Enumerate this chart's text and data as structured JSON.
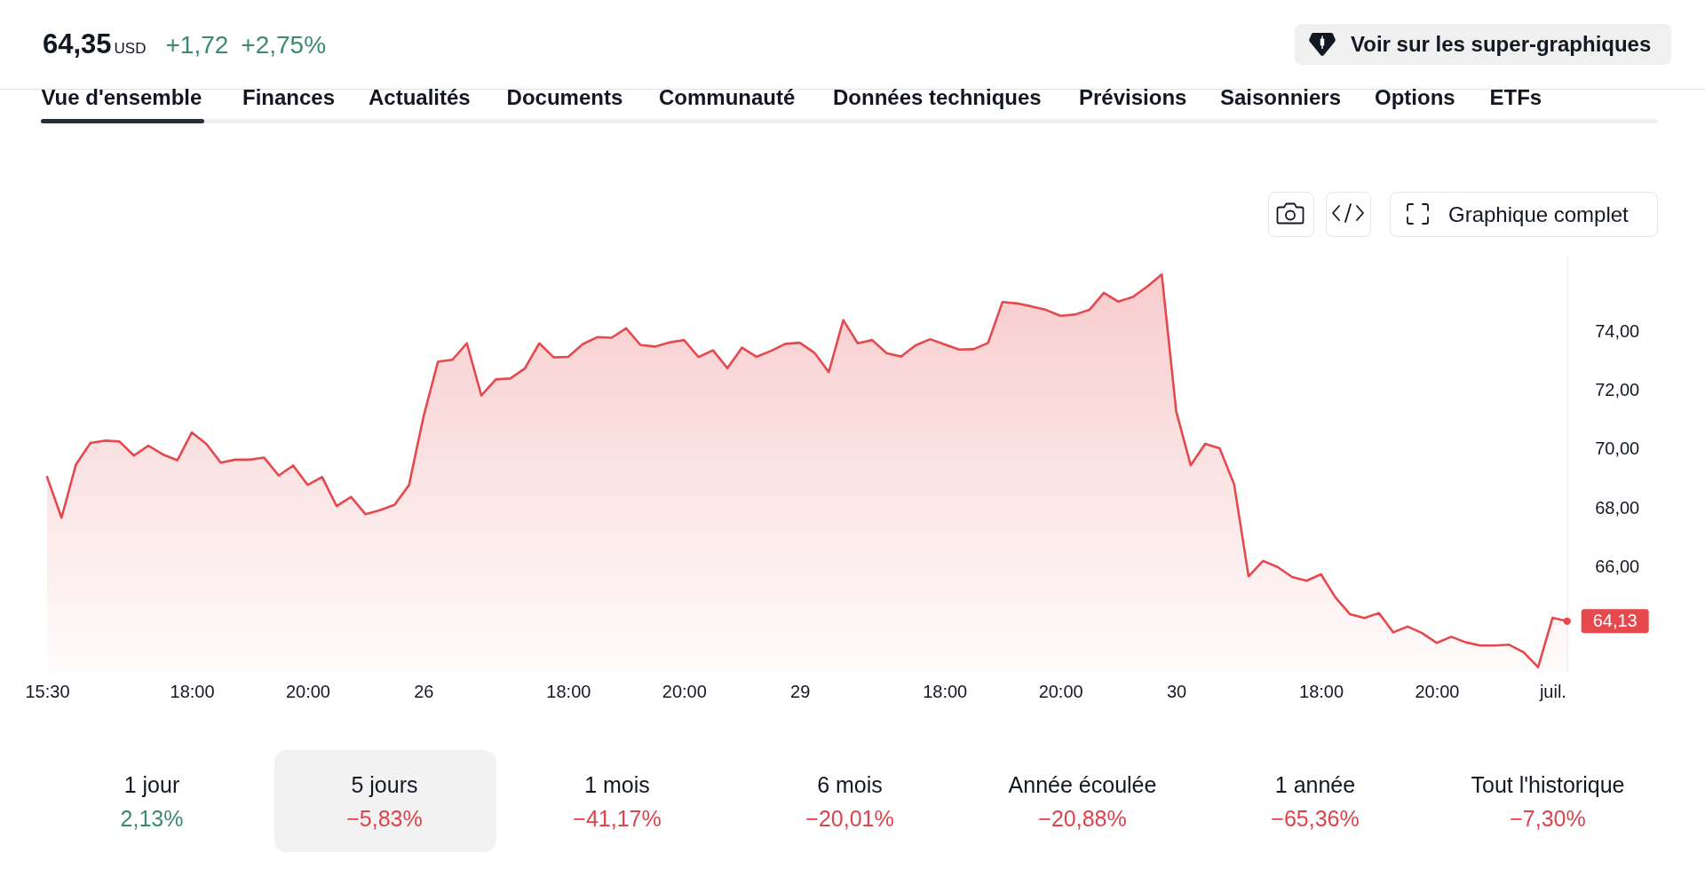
{
  "chart_data": [
    {
      "type": "other",
      "annotations": [
        "64,35",
        "USD",
        "+1,72",
        "+2,75%",
        "Voir sur les super-graphiques",
        "Vue d'ensemble",
        "Finances",
        "Actualités",
        "Documents",
        "Communauté",
        "Données techniques",
        "Prévisions",
        "Saisonniers",
        "Options",
        "ETFs"
      ]
    },
    {
      "type": "area",
      "annotations": [
        "Graphique complet"
      ],
      "color": "#e5484d",
      "ylim": [
        62.4,
        76.6
      ],
      "yticks": [
        {
          "value": 66,
          "label": "66,00"
        },
        {
          "value": 68,
          "label": "68,00"
        },
        {
          "value": 70,
          "label": "70,00"
        },
        {
          "value": 72,
          "label": "72,00"
        },
        {
          "value": 74,
          "label": "74,00"
        }
      ],
      "categories": [
        "15:30",
        null,
        null,
        null,
        null,
        null,
        null,
        null,
        null,
        null,
        "18:00",
        null,
        null,
        null,
        null,
        null,
        null,
        null,
        "20:00",
        null,
        null,
        null,
        null,
        null,
        null,
        null,
        "26",
        null,
        null,
        null,
        null,
        null,
        null,
        null,
        null,
        null,
        "18:00",
        null,
        null,
        null,
        null,
        null,
        null,
        null,
        "20:00",
        null,
        null,
        null,
        null,
        null,
        null,
        null,
        "29",
        null,
        null,
        null,
        null,
        null,
        null,
        null,
        null,
        null,
        "18:00",
        null,
        null,
        null,
        null,
        null,
        null,
        null,
        "20:00",
        null,
        null,
        null,
        null,
        null,
        null,
        null,
        "30",
        null,
        null,
        null,
        null,
        null,
        null,
        null,
        null,
        null,
        "18:00",
        null,
        null,
        null,
        null,
        null,
        null,
        null,
        "20:00",
        null,
        null,
        null,
        null,
        null,
        null,
        null,
        "juil.",
        null
      ],
      "values": [
        69.05,
        67.66,
        69.48,
        70.21,
        70.29,
        70.26,
        69.78,
        70.12,
        69.82,
        69.62,
        70.57,
        70.18,
        69.54,
        69.64,
        69.64,
        69.71,
        69.1,
        69.44,
        68.78,
        69.05,
        68.06,
        68.37,
        67.78,
        67.92,
        68.1,
        68.77,
        71.1,
        72.98,
        73.05,
        73.61,
        71.83,
        72.38,
        72.41,
        72.75,
        73.61,
        73.13,
        73.15,
        73.58,
        73.82,
        73.8,
        74.12,
        73.55,
        73.5,
        73.64,
        73.72,
        73.14,
        73.37,
        72.76,
        73.46,
        73.15,
        73.35,
        73.59,
        73.63,
        73.29,
        72.63,
        74.4,
        73.61,
        73.72,
        73.27,
        73.16,
        73.54,
        73.75,
        73.57,
        73.4,
        73.41,
        73.62,
        75.02,
        74.97,
        74.87,
        74.75,
        74.55,
        74.59,
        74.75,
        75.33,
        75.03,
        75.19,
        75.55,
        75.96,
        71.29,
        69.45,
        70.18,
        70.03,
        68.8,
        65.66,
        66.19,
        65.98,
        65.64,
        65.51,
        65.73,
        64.94,
        64.37,
        64.24,
        64.41,
        63.75,
        63.95,
        63.72,
        63.39,
        63.6,
        63.41,
        63.3,
        63.3,
        63.33,
        63.07,
        62.56,
        64.25,
        64.13
      ],
      "value_labels": [
        null,
        null,
        null,
        null,
        null,
        null,
        null,
        null,
        null,
        null,
        null,
        null,
        null,
        null,
        null,
        null,
        null,
        null,
        null,
        null,
        null,
        null,
        null,
        null,
        null,
        null,
        null,
        null,
        null,
        null,
        null,
        null,
        null,
        null,
        null,
        null,
        null,
        null,
        null,
        null,
        null,
        null,
        null,
        null,
        null,
        null,
        null,
        null,
        null,
        null,
        null,
        null,
        null,
        null,
        null,
        null,
        null,
        null,
        null,
        null,
        null,
        null,
        null,
        null,
        null,
        null,
        null,
        null,
        null,
        null,
        null,
        null,
        null,
        null,
        null,
        null,
        null,
        null,
        null,
        null,
        null,
        null,
        null,
        null,
        null,
        null,
        null,
        null,
        null,
        null,
        null,
        null,
        null,
        null,
        null,
        null,
        null,
        null,
        null,
        null,
        null,
        null,
        null,
        null,
        null,
        "64,13"
      ]
    },
    {
      "type": "other",
      "categories": [
        "1 jour",
        "5 jours",
        "1 mois",
        "6 mois",
        "Année écoulée",
        "1 année",
        "Tout l'historique"
      ],
      "values": [
        2.13,
        -5.83,
        -41.17,
        -20.01,
        -20.88,
        -65.36,
        -7.3
      ],
      "value_labels": [
        "2,13%",
        "−5,83%",
        "−41,17%",
        "−20,01%",
        "−20,88%",
        "−65,36%",
        "−7,30%"
      ]
    }
  ]
}
